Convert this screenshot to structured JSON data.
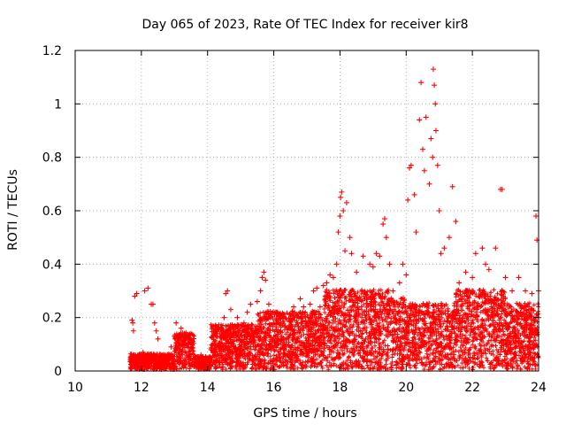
{
  "chart_data": {
    "type": "scatter",
    "title": "Day 065 of 2023, Rate Of TEC Index for receiver kir8",
    "xlabel": "GPS time / hours",
    "ylabel": "ROTI / TECUs",
    "xlim": [
      10,
      24
    ],
    "ylim": [
      0,
      1.2
    ],
    "x_ticks": [
      10,
      12,
      14,
      16,
      18,
      20,
      22,
      24
    ],
    "x_tick_labels": [
      "10",
      "12",
      "14",
      "16",
      "18",
      "20",
      "22",
      "24"
    ],
    "y_ticks": [
      0,
      0.2,
      0.4,
      0.6,
      0.8,
      1.0,
      1.2
    ],
    "y_tick_labels": [
      "0",
      "0.2",
      "0.4",
      "0.6",
      "0.8",
      "1",
      "1.2"
    ],
    "grid": true,
    "marker": "+",
    "color": "#ff0000",
    "points": [
      [
        11.72,
        0.19
      ],
      [
        11.74,
        0.18
      ],
      [
        11.76,
        0.15
      ],
      [
        11.8,
        0.28
      ],
      [
        11.86,
        0.29
      ],
      [
        12.0,
        0.05
      ],
      [
        12.05,
        0.07
      ],
      [
        12.1,
        0.3
      ],
      [
        12.2,
        0.31
      ],
      [
        12.3,
        0.25
      ],
      [
        12.35,
        0.25
      ],
      [
        12.4,
        0.18
      ],
      [
        12.45,
        0.15
      ],
      [
        12.5,
        0.12
      ],
      [
        12.9,
        0.09
      ],
      [
        13.0,
        0.13
      ],
      [
        13.05,
        0.18
      ],
      [
        13.2,
        0.16
      ],
      [
        13.3,
        0.14
      ],
      [
        13.5,
        0.1
      ],
      [
        13.8,
        0.06
      ],
      [
        14.1,
        0.08
      ],
      [
        14.3,
        0.14
      ],
      [
        14.5,
        0.2
      ],
      [
        14.55,
        0.29
      ],
      [
        14.6,
        0.3
      ],
      [
        14.7,
        0.23
      ],
      [
        14.9,
        0.2
      ],
      [
        15.1,
        0.18
      ],
      [
        15.2,
        0.22
      ],
      [
        15.3,
        0.25
      ],
      [
        15.5,
        0.26
      ],
      [
        15.6,
        0.3
      ],
      [
        15.65,
        0.35
      ],
      [
        15.7,
        0.37
      ],
      [
        15.75,
        0.34
      ],
      [
        15.85,
        0.25
      ],
      [
        15.9,
        0.2
      ],
      [
        16.0,
        0.18
      ],
      [
        16.1,
        0.22
      ],
      [
        16.3,
        0.2
      ],
      [
        16.5,
        0.21
      ],
      [
        16.6,
        0.24
      ],
      [
        16.8,
        0.27
      ],
      [
        16.9,
        0.24
      ],
      [
        17.1,
        0.25
      ],
      [
        17.2,
        0.3
      ],
      [
        17.3,
        0.31
      ],
      [
        17.4,
        0.24
      ],
      [
        17.5,
        0.32
      ],
      [
        17.6,
        0.33
      ],
      [
        17.7,
        0.36
      ],
      [
        17.8,
        0.35
      ],
      [
        17.9,
        0.4
      ],
      [
        17.95,
        0.52
      ],
      [
        18.0,
        0.58
      ],
      [
        18.02,
        0.65
      ],
      [
        18.05,
        0.67
      ],
      [
        18.1,
        0.6
      ],
      [
        18.15,
        0.45
      ],
      [
        18.2,
        0.63
      ],
      [
        18.3,
        0.5
      ],
      [
        18.35,
        0.44
      ],
      [
        18.5,
        0.37
      ],
      [
        18.7,
        0.43
      ],
      [
        18.9,
        0.4
      ],
      [
        19.0,
        0.39
      ],
      [
        19.1,
        0.44
      ],
      [
        19.2,
        0.43
      ],
      [
        19.3,
        0.55
      ],
      [
        19.35,
        0.57
      ],
      [
        19.4,
        0.5
      ],
      [
        19.5,
        0.4
      ],
      [
        19.6,
        0.3
      ],
      [
        19.8,
        0.33
      ],
      [
        19.9,
        0.4
      ],
      [
        20.0,
        0.36
      ],
      [
        20.05,
        0.64
      ],
      [
        20.1,
        0.76
      ],
      [
        20.15,
        0.77
      ],
      [
        20.25,
        0.66
      ],
      [
        20.3,
        0.52
      ],
      [
        20.4,
        0.94
      ],
      [
        20.45,
        1.08
      ],
      [
        20.5,
        0.83
      ],
      [
        20.55,
        0.75
      ],
      [
        20.6,
        0.95
      ],
      [
        20.7,
        0.7
      ],
      [
        20.75,
        0.87
      ],
      [
        20.8,
        0.8
      ],
      [
        20.82,
        1.13
      ],
      [
        20.85,
        1.07
      ],
      [
        20.88,
        1.0
      ],
      [
        20.9,
        0.9
      ],
      [
        20.95,
        0.77
      ],
      [
        21.0,
        0.6
      ],
      [
        21.05,
        0.44
      ],
      [
        21.15,
        0.46
      ],
      [
        21.3,
        0.5
      ],
      [
        21.4,
        0.69
      ],
      [
        21.5,
        0.56
      ],
      [
        21.6,
        0.33
      ],
      [
        21.8,
        0.37
      ],
      [
        22.0,
        0.35
      ],
      [
        22.1,
        0.44
      ],
      [
        22.3,
        0.46
      ],
      [
        22.4,
        0.4
      ],
      [
        22.5,
        0.38
      ],
      [
        22.7,
        0.46
      ],
      [
        22.85,
        0.68
      ],
      [
        22.9,
        0.68
      ],
      [
        23.0,
        0.35
      ],
      [
        23.2,
        0.3
      ],
      [
        23.4,
        0.35
      ],
      [
        23.6,
        0.3
      ],
      [
        23.8,
        0.29
      ],
      [
        23.92,
        0.58
      ],
      [
        23.95,
        0.49
      ],
      [
        24.0,
        0.3
      ],
      [
        24.0,
        0.2
      ]
    ]
  }
}
